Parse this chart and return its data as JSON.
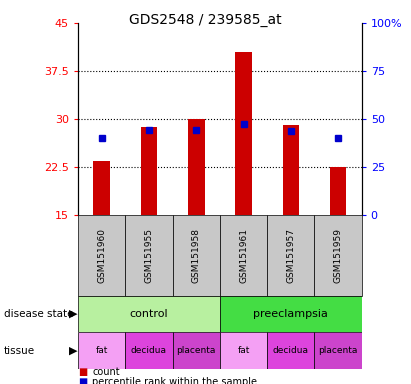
{
  "title": "GDS2548 / 239585_at",
  "samples": [
    "GSM151960",
    "GSM151955",
    "GSM151958",
    "GSM151961",
    "GSM151957",
    "GSM151959"
  ],
  "bar_bottom": 15,
  "counts": [
    23.5,
    28.8,
    30.0,
    40.5,
    29.0,
    22.5
  ],
  "percentile_ranks_y": [
    27.0,
    28.3,
    28.3,
    29.3,
    28.1,
    27.0
  ],
  "bar_color": "#cc0000",
  "marker_color": "#0000cc",
  "left_yticks": [
    15,
    22.5,
    30,
    37.5,
    45
  ],
  "left_ytick_labels": [
    "15",
    "22.5",
    "30",
    "37.5",
    "45"
  ],
  "right_yticks": [
    0,
    25,
    50,
    75,
    100
  ],
  "right_ytick_labels": [
    "0",
    "25",
    "50",
    "75",
    "100%"
  ],
  "ylim": [
    15,
    45
  ],
  "right_ylim": [
    0,
    100
  ],
  "disease_state_control_color": "#b8f0a0",
  "disease_state_preeclampsia_color": "#44dd44",
  "tissue_fat_color": "#f4a0f4",
  "tissue_decidua_color": "#dd44dd",
  "tissue_placenta_color": "#cc44cc",
  "tissue_labels": [
    "fat",
    "decidua",
    "placenta",
    "fat",
    "decidua",
    "placenta"
  ],
  "sample_bg_color": "#c8c8c8",
  "background_color": "#ffffff"
}
